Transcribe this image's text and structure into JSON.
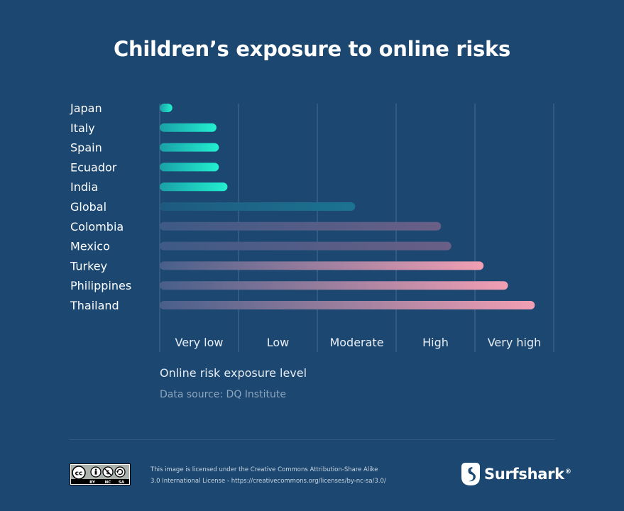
{
  "title": "Children’s exposure to online risks",
  "axis_title": "Online risk exposure level",
  "source": "Data source: DQ Institute",
  "license_line1": "This image is licensed under the Creative Commons Attribution-Share Alike",
  "license_line2": "3.0 International License - https://creativecommons.org/licenses/by-nc-sa/3.0/",
  "cc_badge": {
    "top": "cc",
    "labels": [
      "BY",
      "NC",
      "SA"
    ]
  },
  "brand": {
    "name": "Surfshark",
    "reg": "®"
  },
  "colors": {
    "background": "#1b4770",
    "low_bar": "#1de9c9",
    "global_bar": "#1f6f8c",
    "high_bar": "#f09aae",
    "grid": "#4a6e92"
  },
  "chart_data": {
    "type": "bar",
    "orientation": "horizontal",
    "categories": [
      "Japan",
      "Italy",
      "Spain",
      "Ecuador",
      "India",
      "Global",
      "Colombia",
      "Mexico",
      "Turkey",
      "Philippines",
      "Thailand"
    ],
    "values": [
      0.16,
      0.72,
      0.75,
      0.75,
      0.86,
      2.48,
      3.57,
      3.7,
      4.11,
      4.42,
      4.76
    ],
    "xticks": [
      "Very low",
      "Low",
      "Moderate",
      "High",
      "Very high"
    ],
    "xlim": [
      0,
      5
    ],
    "xlabel": "Online risk exposure level",
    "grid": true
  }
}
